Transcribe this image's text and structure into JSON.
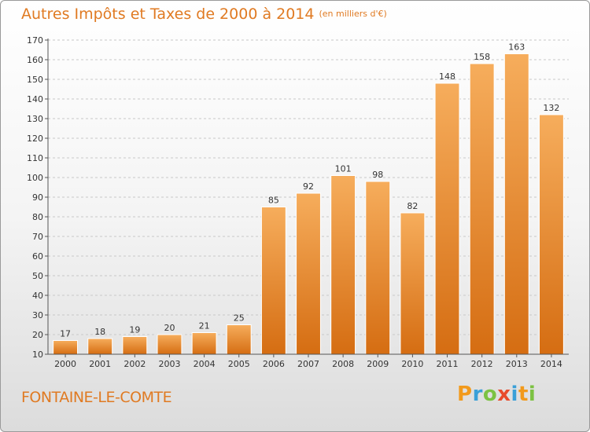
{
  "header": {
    "title": "Autres Impôts et Taxes de 2000 à 2014",
    "subtitle": "(en milliers d'€)"
  },
  "footer": {
    "city": "FONTAINE-LE-COMTE"
  },
  "logo": {
    "letters": [
      "P",
      "r",
      "o",
      "x",
      "i",
      "t",
      "i"
    ],
    "colors": [
      "#f29a1c",
      "#3aa0d8",
      "#7cc242",
      "#e84b2c",
      "#3aa0d8",
      "#f29a1c",
      "#7cc242"
    ]
  },
  "colors": {
    "bar_light": "#f6ad5c",
    "bar_dark": "#d56d12",
    "accent": "#e07a22",
    "grid": "#c8c8c8"
  },
  "chart_data": {
    "type": "bar",
    "title": "Autres Impôts et Taxes de 2000 à 2014",
    "subtitle": "(en milliers d'€)",
    "categories": [
      "2000",
      "2001",
      "2002",
      "2003",
      "2004",
      "2005",
      "2006",
      "2007",
      "2008",
      "2009",
      "2010",
      "2011",
      "2012",
      "2013",
      "2014"
    ],
    "values": [
      17,
      18,
      19,
      20,
      21,
      25,
      85,
      92,
      101,
      98,
      82,
      148,
      158,
      163,
      132
    ],
    "ylim": [
      10,
      170
    ],
    "yticks": [
      10,
      20,
      30,
      40,
      50,
      60,
      70,
      80,
      90,
      100,
      110,
      120,
      130,
      140,
      150,
      160,
      170
    ],
    "grid": true,
    "xlabel": "",
    "ylabel": ""
  }
}
